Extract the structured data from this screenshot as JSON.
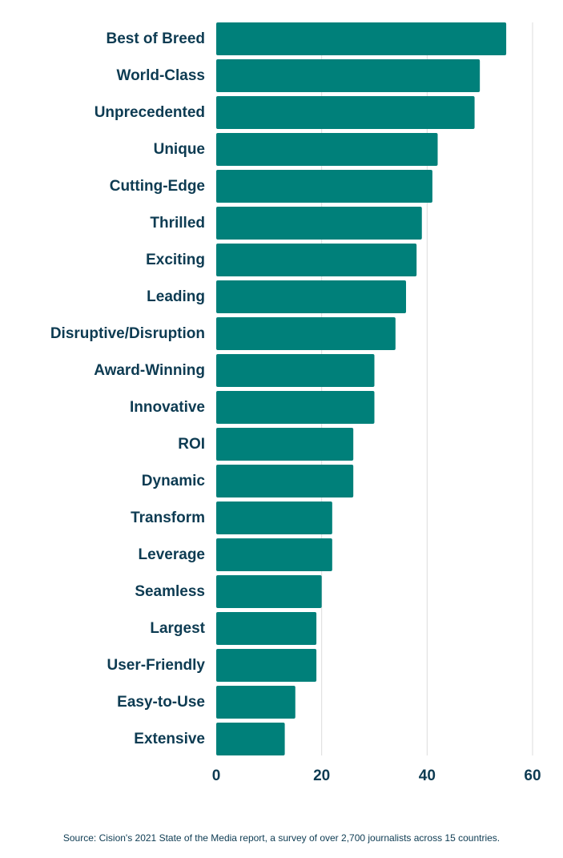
{
  "chart_data": {
    "type": "bar",
    "orientation": "horizontal",
    "title": "",
    "xlabel": "",
    "ylabel": "",
    "categories": [
      "Best of Breed",
      "World-Class",
      "Unprecedented",
      "Unique",
      "Cutting-Edge",
      "Thrilled",
      "Exciting",
      "Leading",
      "Disruptive/Disruption",
      "Award-Winning",
      "Innovative",
      "ROI",
      "Dynamic",
      "Transform",
      "Leverage",
      "Seamless",
      "Largest",
      "User-Friendly",
      "Easy-to-Use",
      "Extensive"
    ],
    "values": [
      55,
      50,
      49,
      42,
      41,
      39,
      38,
      36,
      34,
      30,
      30,
      26,
      26,
      22,
      22,
      20,
      19,
      19,
      15,
      13
    ],
    "xlim": [
      0,
      60
    ],
    "xticks": [
      0,
      20,
      40,
      60
    ],
    "xtick_labels": [
      "0",
      "20",
      "40",
      "60"
    ],
    "grid": true,
    "bar_color": "#00807a",
    "text_color": "#0d3b52"
  },
  "source": "Source: Cision's 2021 State of the Media report, a survey of over 2,700 journalists across 15 countries."
}
